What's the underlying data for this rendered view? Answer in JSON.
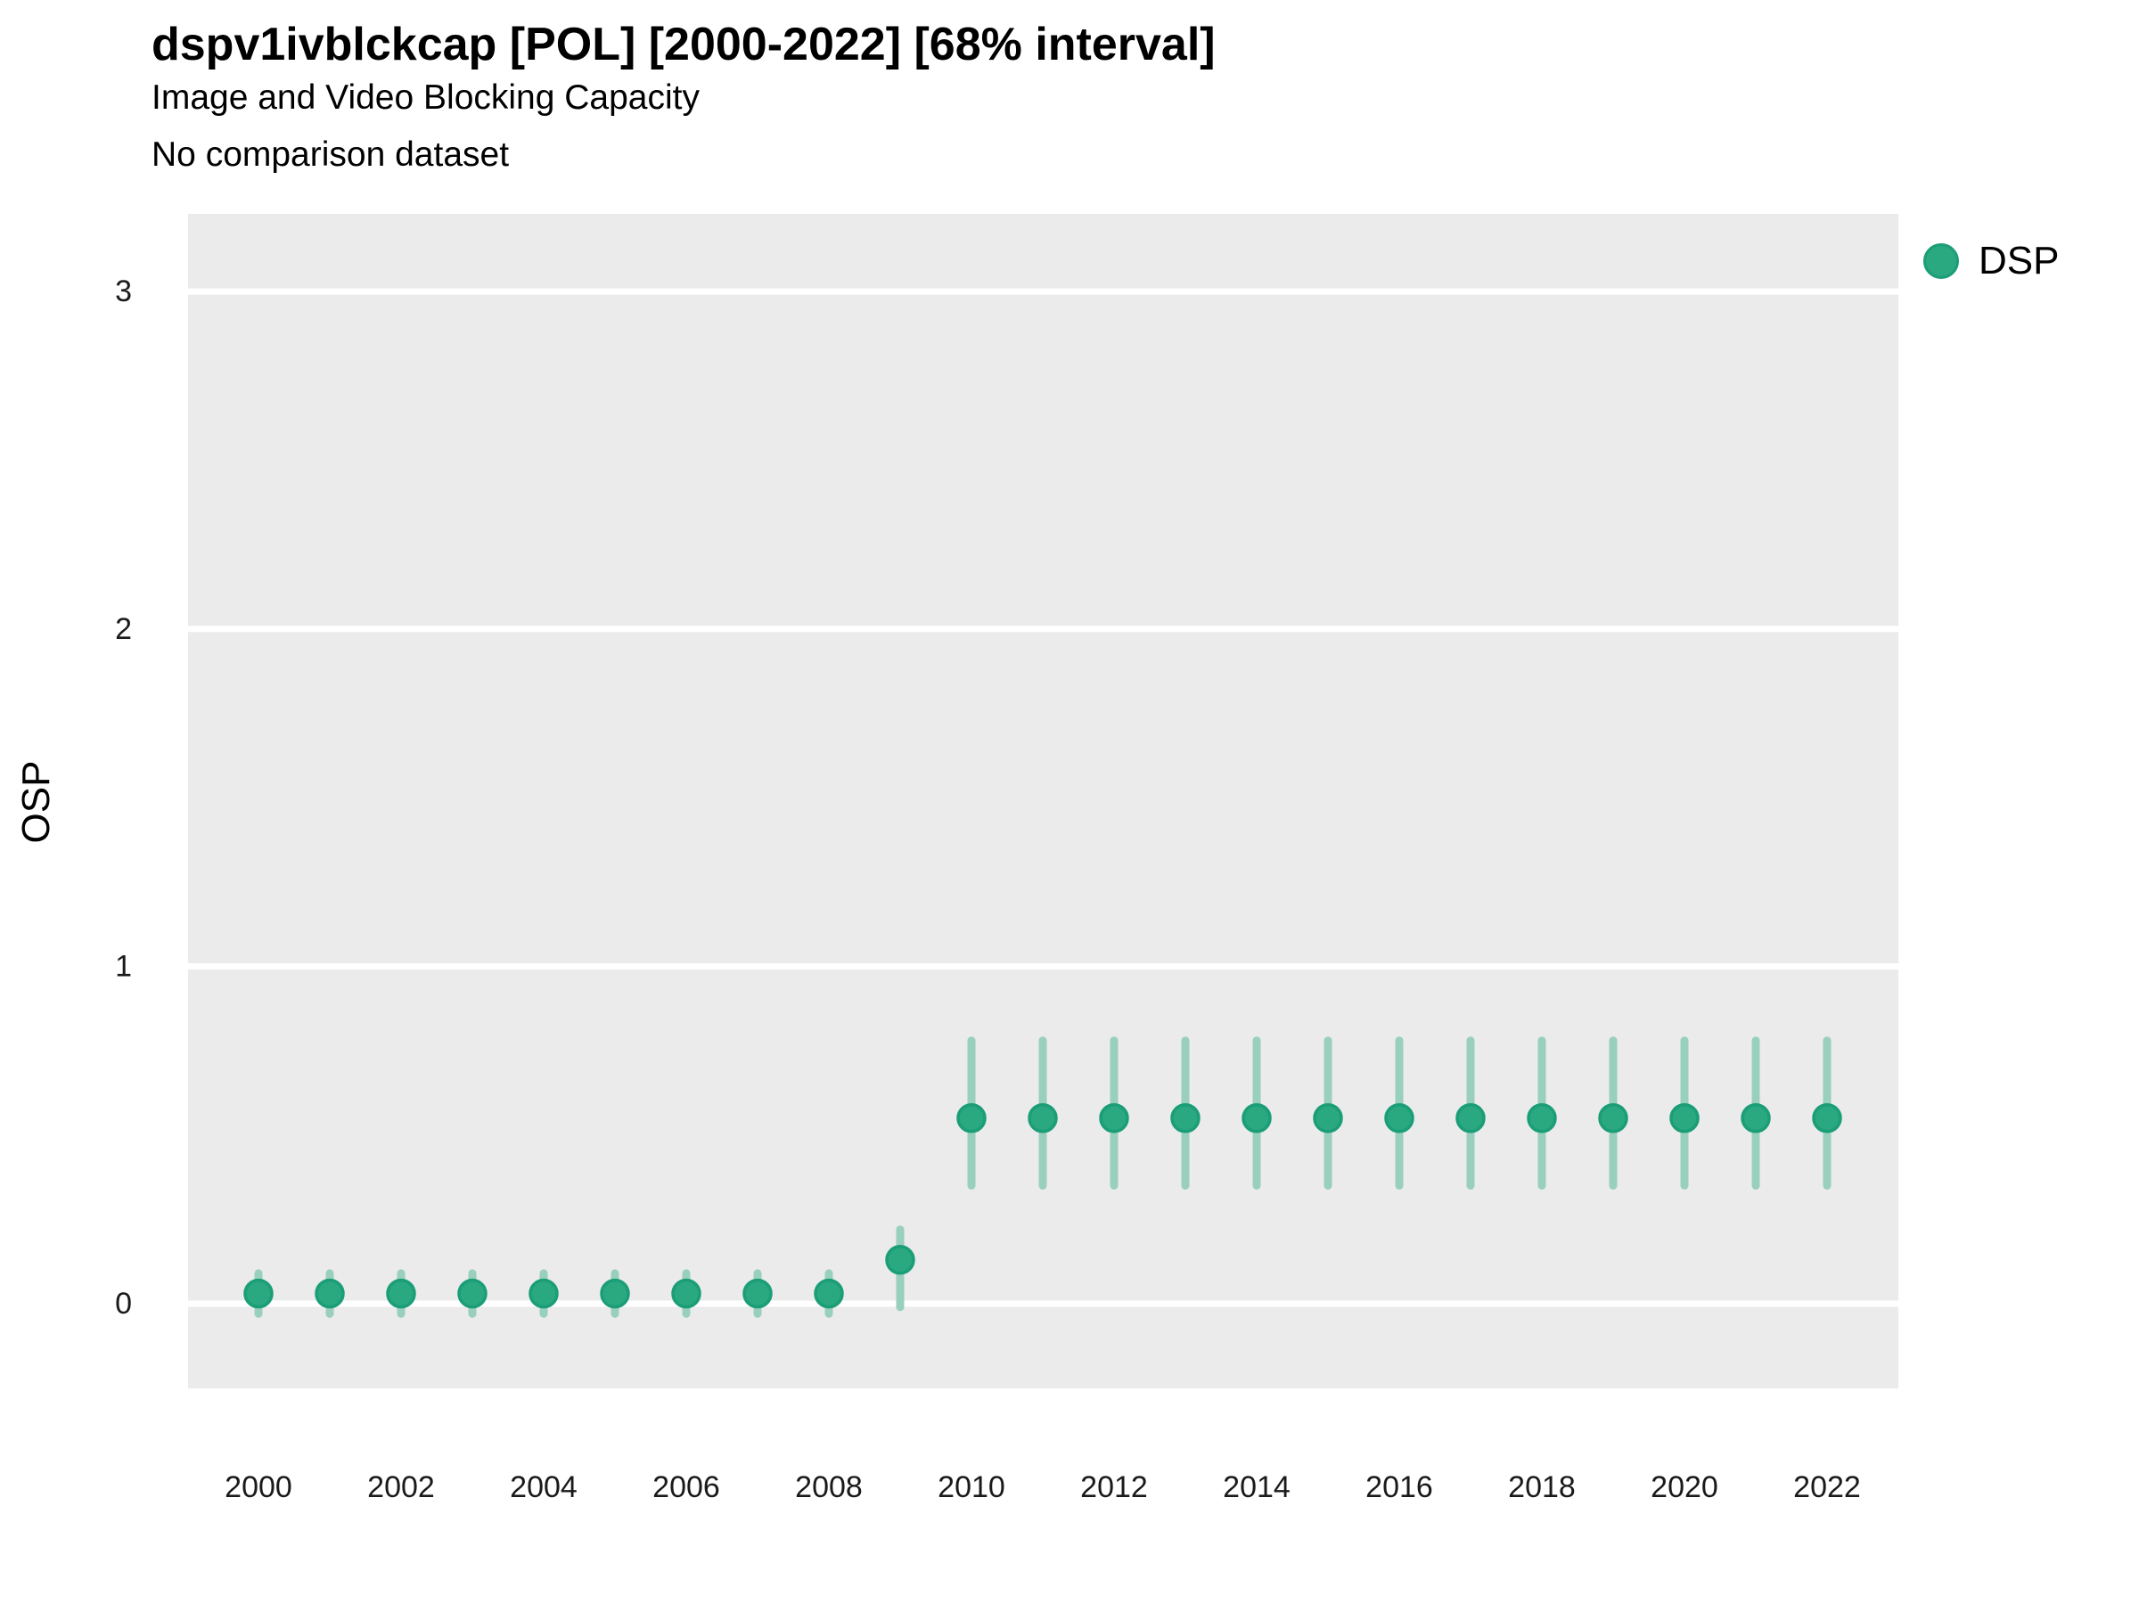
{
  "header": {
    "title": "dspv1ivblckcap [POL] [2000-2022] [68% interval]",
    "subtitle": "Image and Video Blocking Capacity",
    "comparison_note": "No comparison dataset"
  },
  "legend": {
    "position": "right-top",
    "items": [
      {
        "label": "DSP",
        "color": "#2aa87f"
      }
    ]
  },
  "colors": {
    "point_fill": "#2aa87f",
    "point_stroke": "#1b9e77",
    "error_bar": "#99cfbd",
    "panel_background": "#ebebeb",
    "gridline": "#ffffff",
    "tick_text": "#1a1a1a"
  },
  "chart_data": {
    "type": "scatter",
    "title": "dspv1ivblckcap [POL] [2000-2022] [68% interval]",
    "subtitle": "Image and Video Blocking Capacity",
    "note": "No comparison dataset",
    "interval": "68%",
    "xlabel": "",
    "ylabel": "OSP",
    "x": [
      2000,
      2001,
      2002,
      2003,
      2004,
      2005,
      2006,
      2007,
      2008,
      2009,
      2010,
      2011,
      2012,
      2013,
      2014,
      2015,
      2016,
      2017,
      2018,
      2019,
      2020,
      2021,
      2022
    ],
    "series": [
      {
        "name": "DSP",
        "values": [
          0.03,
          0.03,
          0.03,
          0.03,
          0.03,
          0.03,
          0.03,
          0.03,
          0.03,
          0.13,
          0.55,
          0.55,
          0.55,
          0.55,
          0.55,
          0.55,
          0.55,
          0.55,
          0.55,
          0.55,
          0.55,
          0.55,
          0.55
        ],
        "lower": [
          -0.03,
          -0.03,
          -0.03,
          -0.03,
          -0.03,
          -0.03,
          -0.03,
          -0.03,
          -0.03,
          -0.01,
          0.35,
          0.35,
          0.35,
          0.35,
          0.35,
          0.35,
          0.35,
          0.35,
          0.35,
          0.35,
          0.35,
          0.35,
          0.35
        ],
        "upper": [
          0.09,
          0.09,
          0.09,
          0.09,
          0.09,
          0.09,
          0.09,
          0.09,
          0.09,
          0.22,
          0.78,
          0.78,
          0.78,
          0.78,
          0.78,
          0.78,
          0.78,
          0.78,
          0.78,
          0.78,
          0.78,
          0.78,
          0.78
        ]
      }
    ],
    "xticks": [
      2000,
      2002,
      2004,
      2006,
      2008,
      2010,
      2012,
      2014,
      2016,
      2018,
      2020,
      2022
    ],
    "yticks": [
      0,
      1,
      2,
      3
    ],
    "xlim": [
      1999,
      2023
    ],
    "ylim": [
      -0.25,
      3.23
    ],
    "grid": "horizontal-major-only",
    "legend_position": "right-top"
  }
}
